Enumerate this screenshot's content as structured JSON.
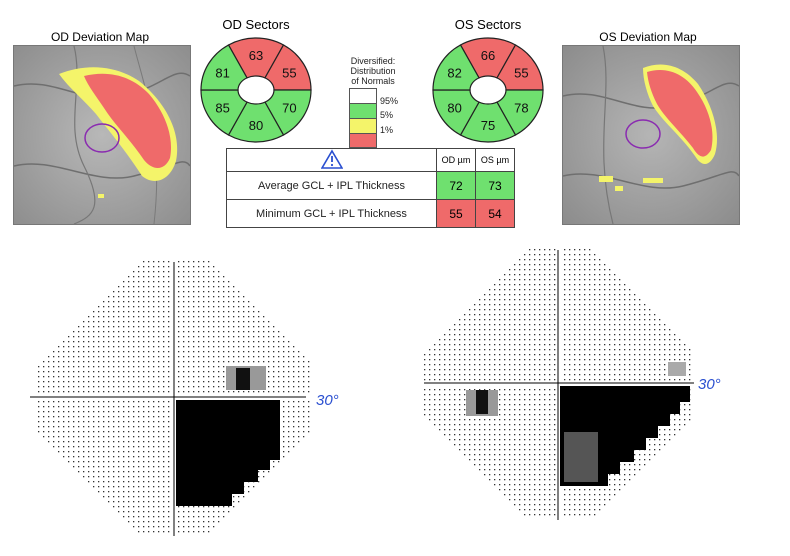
{
  "colors": {
    "normal": "#6fe06f",
    "borderline": "#f4f46a",
    "abnormal": "#ef6a6a",
    "white": "#ffffff",
    "degree_label": "#2a4fd0",
    "disc_circle": "#8a2bb0"
  },
  "od_map": {
    "title": "OD Deviation Map"
  },
  "os_map": {
    "title": "OS Deviation Map"
  },
  "od_sectors": {
    "title": "OD Sectors",
    "values": {
      "top": "63",
      "top_right": "55",
      "right": "70",
      "bottom": "80",
      "left": "85",
      "top_left": "81"
    },
    "colors": {
      "top": "abnormal",
      "top_right": "abnormal",
      "right": "normal",
      "bottom": "normal",
      "left": "normal",
      "top_left": "normal"
    }
  },
  "os_sectors": {
    "title": "OS Sectors",
    "values": {
      "top": "66",
      "top_right": "55",
      "right": "78",
      "bottom": "75",
      "left": "80",
      "top_left": "82"
    },
    "colors": {
      "top": "abnormal",
      "top_right": "abnormal",
      "right": "normal",
      "bottom": "normal",
      "left": "normal",
      "top_left": "normal"
    }
  },
  "legend": {
    "title_lines": [
      "Diversified:",
      "Distribution",
      "of Normals"
    ],
    "labels": [
      "95%",
      "5%",
      "1%"
    ]
  },
  "thickness_table": {
    "warning_icon": "warning-triangle-icon",
    "col_od": "OD µm",
    "col_os": "OS µm",
    "rows": [
      {
        "label": "Average GCL + IPL Thickness",
        "od": "72",
        "os": "73",
        "od_status": "normal",
        "os_status": "normal"
      },
      {
        "label": "Minimum GCL + IPL Thickness",
        "od": "55",
        "os": "54",
        "od_status": "abnormal",
        "os_status": "abnormal"
      }
    ]
  },
  "visual_fields": {
    "left_label": "30°",
    "right_label": "30°"
  }
}
